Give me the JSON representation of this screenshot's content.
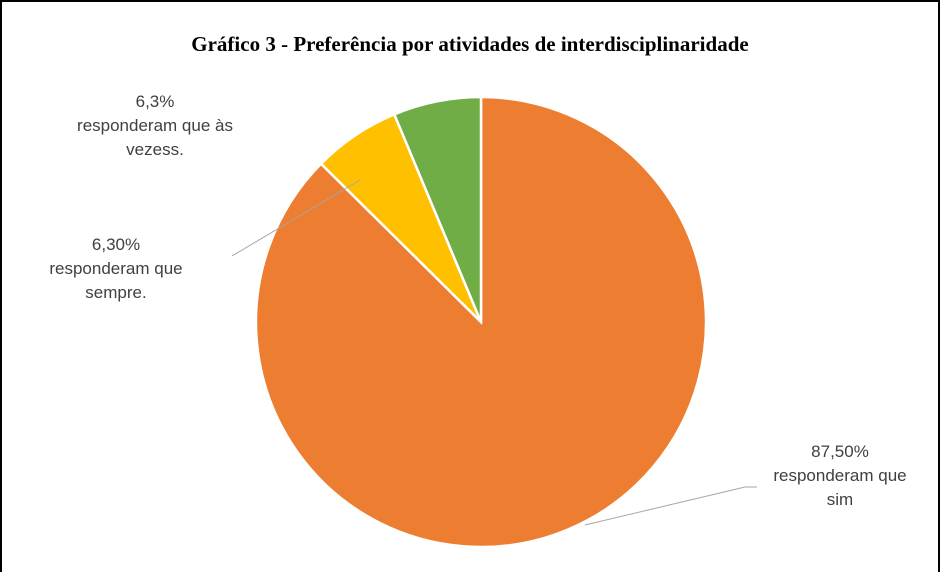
{
  "chart_data": {
    "type": "pie",
    "title": "Gráfico 3 - Preferência por atividades de interdisciplinaridade",
    "categories": [
      "responderam que sim",
      "responderam que sempre.",
      "responderam que às vezess."
    ],
    "values": [
      87.5,
      6.3,
      6.3
    ],
    "value_labels": [
      "87,50%",
      "6,30%",
      "6,3%"
    ],
    "colors": [
      "#ed7d31",
      "#ffc000",
      "#70ad47"
    ]
  }
}
